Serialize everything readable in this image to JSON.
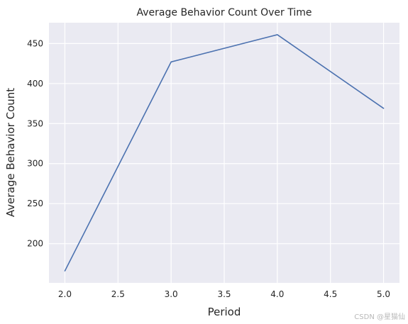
{
  "chart_data": {
    "type": "line",
    "title": "Average Behavior Count Over Time",
    "xlabel": "Period",
    "ylabel": "Average Behavior Count",
    "x": [
      2.0,
      3.0,
      4.0,
      5.0
    ],
    "series": [
      {
        "values": [
          166,
          427,
          461,
          369
        ],
        "color": "#4c72b0"
      }
    ],
    "xlim": [
      1.85,
      5.15
    ],
    "ylim": [
      151,
      476
    ],
    "xticks": [
      2.0,
      2.5,
      3.0,
      3.5,
      4.0,
      4.5,
      5.0
    ],
    "xtick_labels": [
      "2.0",
      "2.5",
      "3.0",
      "3.5",
      "4.0",
      "4.5",
      "5.0"
    ],
    "yticks": [
      200,
      250,
      300,
      350,
      400,
      450
    ],
    "ytick_labels": [
      "200",
      "250",
      "300",
      "350",
      "400",
      "450"
    ],
    "grid": true,
    "background": "#eaeaf2",
    "grid_color": "#ffffff"
  },
  "watermark": "CSDN @星猫仙"
}
